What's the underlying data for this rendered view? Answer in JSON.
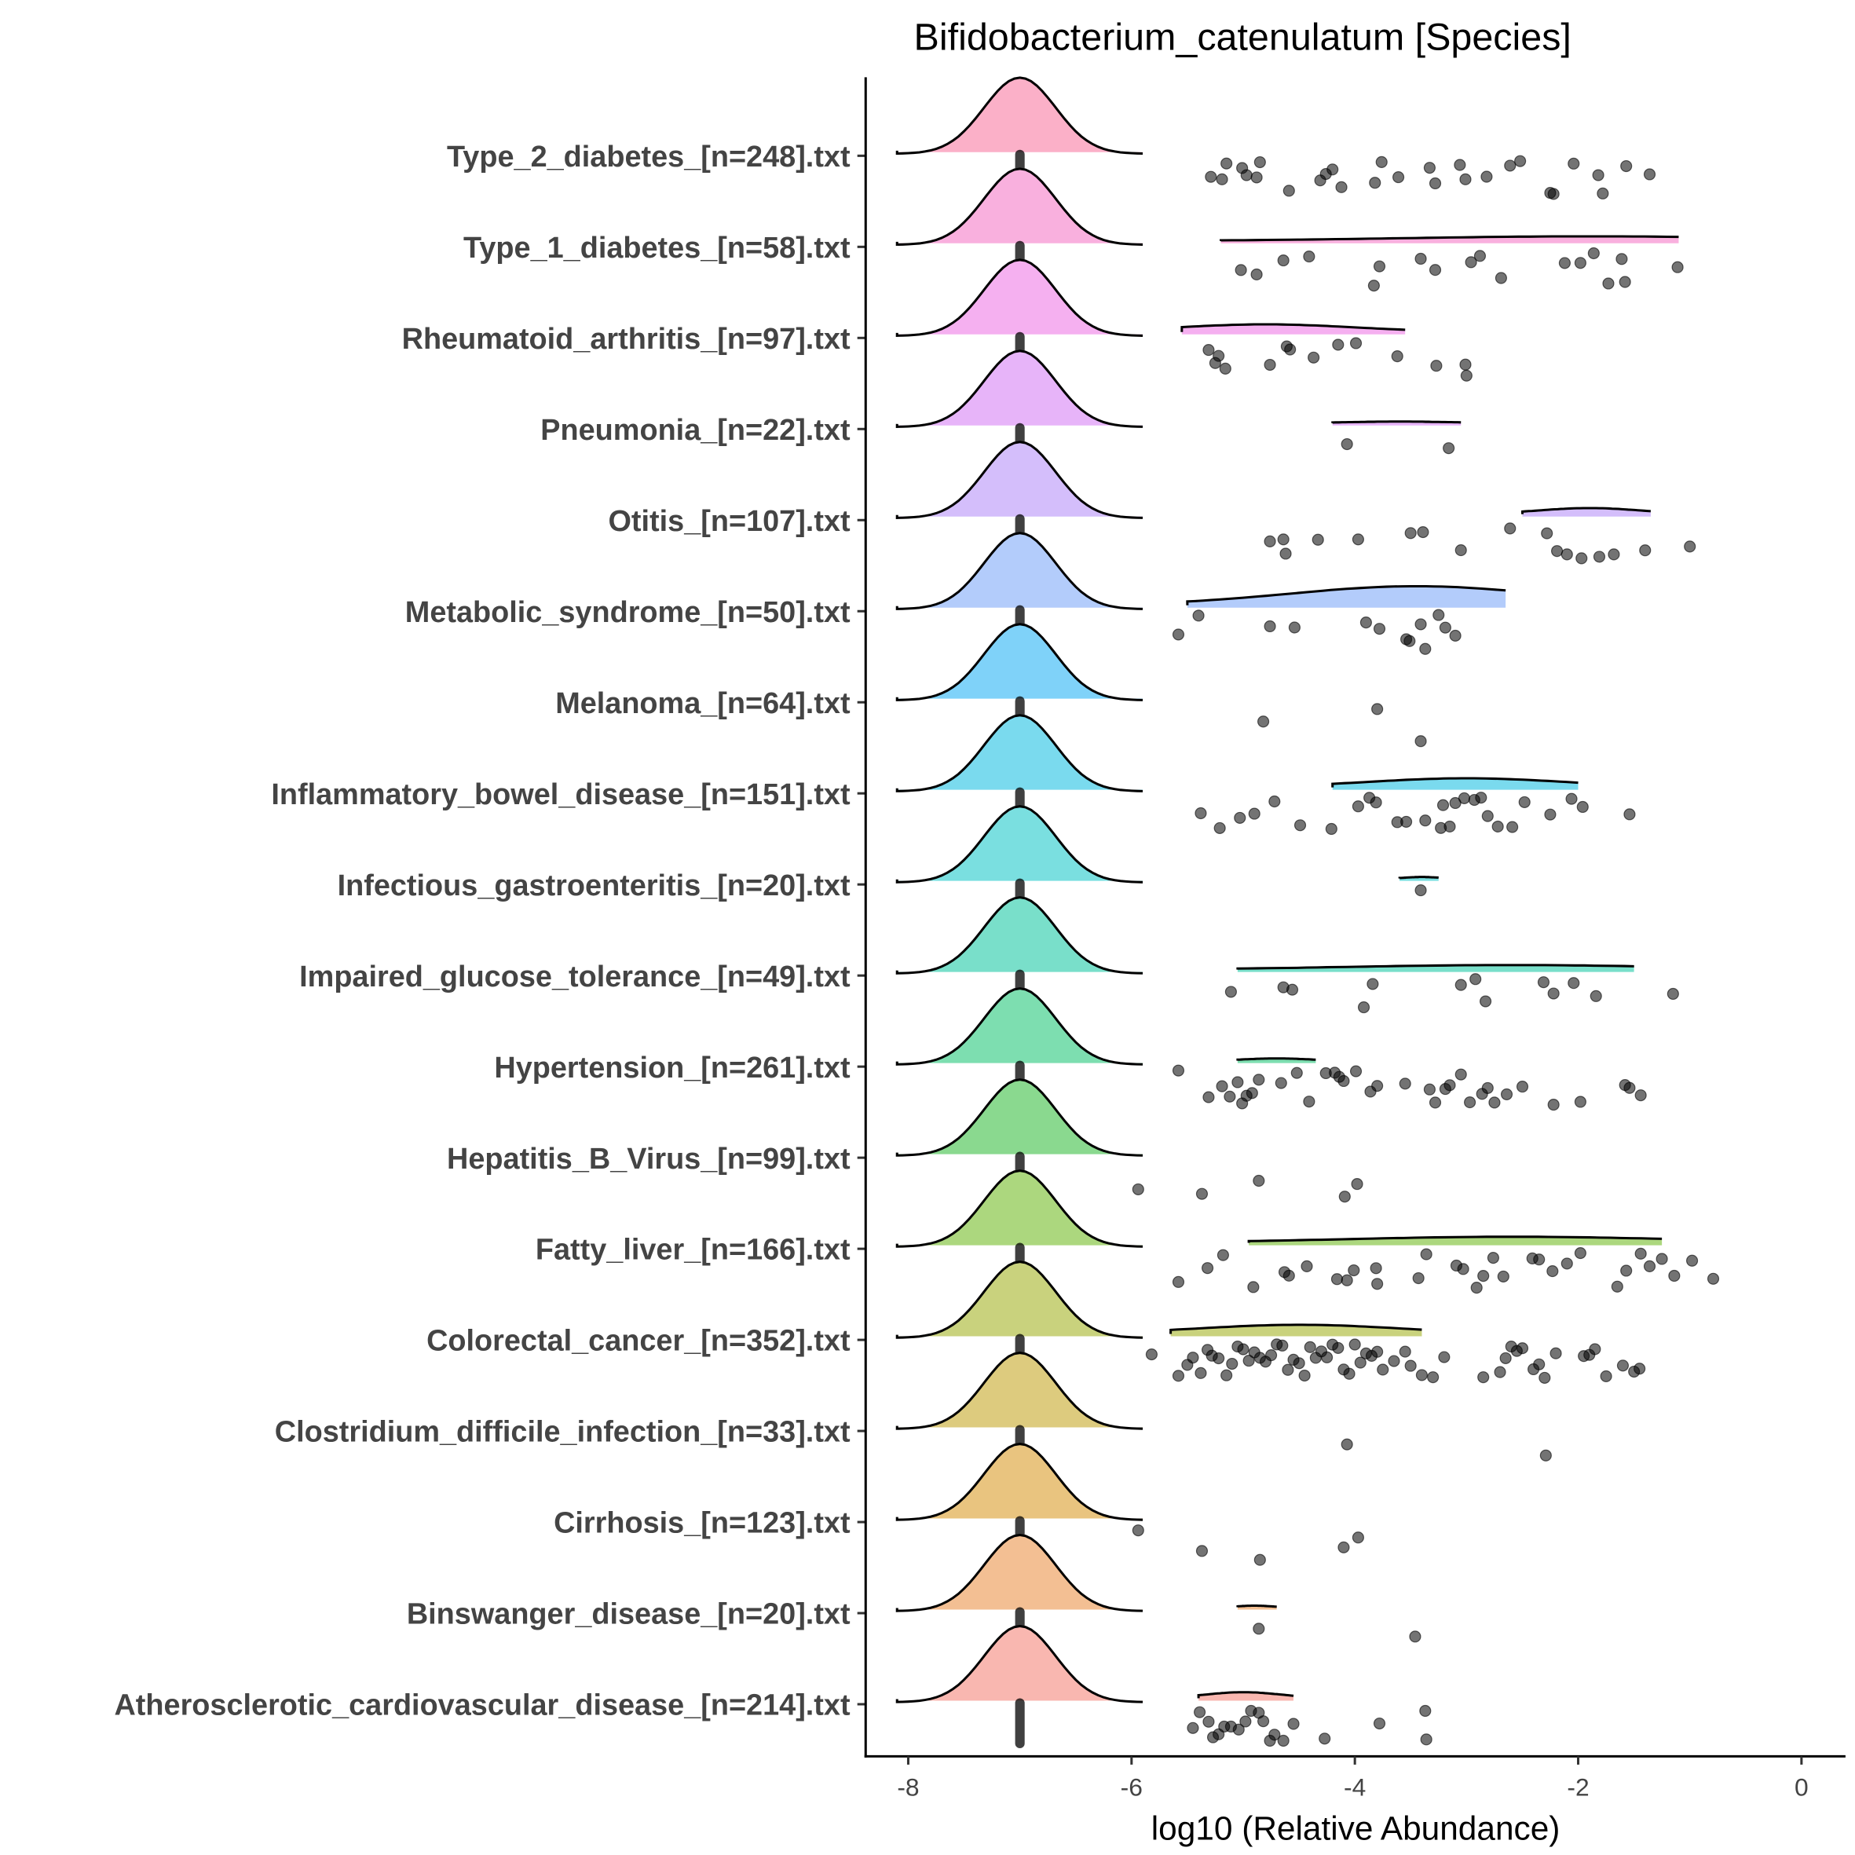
{
  "chart_data": {
    "type": "ridgeline",
    "title": "Bifidobacterium_catenulatum [Species]",
    "xlabel": "log10 (Relative Abundance)",
    "ylabel": "",
    "xlim": [
      -8.3,
      0.4
    ],
    "xticks": [
      -8,
      -6,
      -4,
      -2,
      0
    ],
    "xtick_labels": [
      "-8",
      "-6",
      "-4",
      "-2",
      "0"
    ],
    "zero_mode_value": -7,
    "rows": [
      {
        "label": "Type_2_diabetes_[n=248].txt",
        "color": "#FBB0C8",
        "secondary": null,
        "points": [
          -5.29,
          -5.19,
          -5.15,
          -5.01,
          -4.97,
          -4.88,
          -4.85,
          -4.59,
          -4.31,
          -4.26,
          -4.2,
          -4.12,
          -3.82,
          -3.76,
          -3.61,
          -3.33,
          -3.28,
          -3.06,
          -3.01,
          -2.82,
          -2.61,
          -2.52,
          -2.25,
          -2.22,
          -2.04,
          -1.82,
          -1.78,
          -1.57,
          -1.36
        ]
      },
      {
        "label": "Type_1_diabetes_[n=58].txt",
        "color": "#F9B0DE",
        "secondary": {
          "from": -5.2,
          "to": -1.1,
          "peak": -1.9,
          "height": 0.06
        },
        "points": [
          -5.02,
          -4.88,
          -4.64,
          -4.41,
          -3.83,
          -3.78,
          -3.41,
          -3.28,
          -2.96,
          -2.88,
          -2.69,
          -2.12,
          -1.98,
          -1.86,
          -1.73,
          -1.61,
          -1.58,
          -1.11
        ]
      },
      {
        "label": "Rheumatoid_arthritis_[n=97].txt",
        "color": "#F5B0F0",
        "secondary": {
          "from": -5.55,
          "to": -3.55,
          "peak": -4.8,
          "height": 0.1
        },
        "points": [
          -5.31,
          -5.25,
          -5.22,
          -5.16,
          -4.76,
          -4.61,
          -4.58,
          -4.37,
          -4.15,
          -3.99,
          -3.62,
          -3.27,
          -3.01,
          -3.0
        ]
      },
      {
        "label": "Pneumonia_[n=22].txt",
        "color": "#E7B4F9",
        "secondary": {
          "from": -4.2,
          "to": -3.05,
          "peak": -3.6,
          "height": 0.02
        },
        "points": [
          -4.07,
          -3.16
        ]
      },
      {
        "label": "Otitis_[n=107].txt",
        "color": "#D4BEFB",
        "secondary": {
          "from": -2.5,
          "to": -1.35,
          "peak": -1.9,
          "height": 0.08
        },
        "points": [
          -4.76,
          -4.64,
          -4.62,
          -4.33,
          -3.97,
          -3.5,
          -3.39,
          -3.05,
          -2.61,
          -2.28,
          -2.19,
          -2.1,
          -1.97,
          -1.81,
          -1.68,
          -1.4,
          -1.0
        ]
      },
      {
        "label": "Metabolic_syndrome_[n=50].txt",
        "color": "#B3CCFB",
        "secondary": {
          "from": -5.5,
          "to": -2.65,
          "peak": -3.45,
          "height": 0.25
        },
        "points": [
          -5.58,
          -5.4,
          -4.76,
          -4.54,
          -3.9,
          -3.78,
          -3.54,
          -3.51,
          -3.41,
          -3.37,
          -3.25,
          -3.19,
          -3.1
        ]
      },
      {
        "label": "Melanoma_[n=64].txt",
        "color": "#7FD2F9",
        "secondary": null,
        "points": [
          -4.82,
          -3.8,
          -3.41
        ]
      },
      {
        "label": "Inflammatory_bowel_disease_[n=151].txt",
        "color": "#7ADAEE",
        "secondary": {
          "from": -4.2,
          "to": -2.0,
          "peak": -3.0,
          "height": 0.12
        },
        "points": [
          -5.38,
          -5.21,
          -5.03,
          -4.9,
          -4.72,
          -4.49,
          -4.21,
          -3.97,
          -3.87,
          -3.81,
          -3.62,
          -3.54,
          -3.37,
          -3.23,
          -3.21,
          -3.15,
          -3.1,
          -3.02,
          -2.93,
          -2.87,
          -2.81,
          -2.72,
          -2.59,
          -2.48,
          -2.25,
          -2.06,
          -1.96,
          -1.54
        ]
      },
      {
        "label": "Infectious_gastroenteritis_[n=20].txt",
        "color": "#7ADFE0",
        "secondary": {
          "from": -3.6,
          "to": -3.25,
          "peak": -3.4,
          "height": 0.02
        },
        "points": [
          -3.41
        ]
      },
      {
        "label": "Impaired_glucose_tolerance_[n=49].txt",
        "color": "#79DFCA",
        "secondary": {
          "from": -5.05,
          "to": -1.5,
          "peak": -2.6,
          "height": 0.06
        },
        "points": [
          -5.11,
          -4.64,
          -4.56,
          -3.92,
          -3.84,
          -3.05,
          -2.92,
          -2.83,
          -2.31,
          -2.22,
          -2.04,
          -1.84,
          -1.15
        ]
      },
      {
        "label": "Hypertension_[n=261].txt",
        "color": "#7DDEB0",
        "secondary": {
          "from": -5.05,
          "to": -4.35,
          "peak": -4.7,
          "height": 0.03
        },
        "points": [
          -5.58,
          -5.31,
          -5.19,
          -5.12,
          -5.05,
          -5.01,
          -4.97,
          -4.92,
          -4.86,
          -4.66,
          -4.52,
          -4.41,
          -4.26,
          -4.18,
          -4.14,
          -4.1,
          -3.99,
          -3.86,
          -3.8,
          -3.55,
          -3.33,
          -3.28,
          -3.19,
          -3.15,
          -3.05,
          -2.97,
          -2.86,
          -2.81,
          -2.75,
          -2.64,
          -2.5,
          -2.22,
          -1.98,
          -1.58,
          -1.54,
          -1.44
        ]
      },
      {
        "label": "Hepatitis_B_Virus_[n=99].txt",
        "color": "#8AD98F",
        "secondary": null,
        "points": [
          -5.94,
          -5.37,
          -4.86,
          -4.09,
          -3.98
        ]
      },
      {
        "label": "Fatty_liver_[n=166].txt",
        "color": "#ACD77E",
        "secondary": {
          "from": -4.95,
          "to": -1.25,
          "peak": -2.6,
          "height": 0.08
        },
        "points": [
          -5.58,
          -5.32,
          -5.18,
          -4.91,
          -4.63,
          -4.59,
          -4.43,
          -4.16,
          -4.07,
          -4.01,
          -3.81,
          -3.8,
          -3.43,
          -3.36,
          -3.09,
          -3.03,
          -2.91,
          -2.85,
          -2.76,
          -2.67,
          -2.41,
          -2.35,
          -2.23,
          -2.1,
          -1.98,
          -1.65,
          -1.57,
          -1.44,
          -1.36,
          -1.25,
          -1.14,
          -0.98,
          -0.79
        ]
      },
      {
        "label": "Colorectal_cancer_[n=352].txt",
        "color": "#C9D27D",
        "secondary": {
          "from": -5.65,
          "to": -3.4,
          "peak": -4.5,
          "height": 0.12
        },
        "points": [
          -5.82,
          -5.58,
          -5.5,
          -5.45,
          -5.38,
          -5.32,
          -5.28,
          -5.22,
          -5.15,
          -5.1,
          -5.05,
          -5.0,
          -4.95,
          -4.9,
          -4.85,
          -4.8,
          -4.75,
          -4.7,
          -4.65,
          -4.6,
          -4.55,
          -4.5,
          -4.45,
          -4.4,
          -4.35,
          -4.3,
          -4.25,
          -4.2,
          -4.15,
          -4.1,
          -4.05,
          -4.0,
          -3.95,
          -3.9,
          -3.85,
          -3.8,
          -3.75,
          -3.65,
          -3.55,
          -3.5,
          -3.4,
          -3.3,
          -3.2,
          -2.85,
          -2.7,
          -2.65,
          -2.6,
          -2.55,
          -2.5,
          -2.4,
          -2.35,
          -2.3,
          -2.2,
          -1.95,
          -1.9,
          -1.85,
          -1.75,
          -1.6,
          -1.5,
          -1.45
        ]
      },
      {
        "label": "Clostridium_difficile_infection_[n=33].txt",
        "color": "#DDCB7E",
        "secondary": null,
        "points": [
          -4.07,
          -2.29
        ]
      },
      {
        "label": "Cirrhosis_[n=123].txt",
        "color": "#E9C47F",
        "secondary": null,
        "points": [
          -5.94,
          -5.37,
          -4.85,
          -4.1,
          -3.97
        ]
      },
      {
        "label": "Binswanger_disease_[n=20].txt",
        "color": "#F3BF93",
        "secondary": {
          "from": -5.05,
          "to": -4.7,
          "peak": -4.9,
          "height": 0.02
        },
        "points": [
          -4.86,
          -3.46
        ]
      },
      {
        "label": "Atherosclerotic_cardiovascular_disease_[n=214].txt",
        "color": "#F9B7B0",
        "secondary": {
          "from": -5.4,
          "to": -4.55,
          "peak": -5.0,
          "height": 0.08
        },
        "points": [
          -5.45,
          -5.39,
          -5.31,
          -5.27,
          -5.22,
          -5.17,
          -5.11,
          -5.04,
          -4.98,
          -4.93,
          -4.86,
          -4.82,
          -4.76,
          -4.72,
          -4.64,
          -4.55,
          -4.27,
          -3.78,
          -3.37,
          -3.36
        ]
      }
    ]
  }
}
